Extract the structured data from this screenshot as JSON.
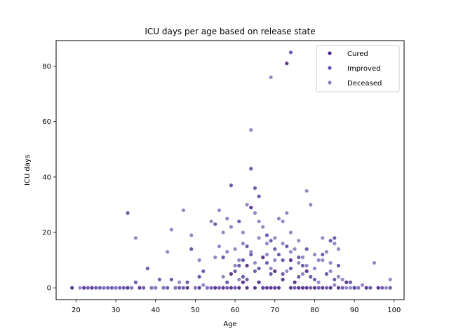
{
  "chart_data": {
    "type": "scatter",
    "title": "ICU days per age based on release state",
    "xlabel": "Age",
    "ylabel": "ICU days",
    "xlim": [
      15.0,
      102.5
    ],
    "ylim": [
      -4.25,
      89.25
    ],
    "xticks": [
      20,
      30,
      40,
      50,
      60,
      70,
      80,
      90,
      100
    ],
    "yticks": [
      0,
      20,
      40,
      60,
      80
    ],
    "grid": false,
    "legend_position": "top-right",
    "series": [
      {
        "name": "Cured",
        "color": "#4a2585",
        "points": [
          [
            19,
            0
          ],
          [
            22,
            0
          ],
          [
            24,
            0
          ],
          [
            27,
            0
          ],
          [
            30,
            0
          ],
          [
            33,
            0
          ],
          [
            36,
            0
          ],
          [
            39,
            0
          ],
          [
            42,
            0
          ],
          [
            45,
            0
          ],
          [
            48,
            0
          ],
          [
            51,
            0
          ],
          [
            53,
            0
          ],
          [
            55,
            0
          ],
          [
            57,
            0
          ],
          [
            59,
            0
          ],
          [
            61,
            0
          ],
          [
            62,
            2
          ],
          [
            63,
            0
          ],
          [
            64,
            29
          ],
          [
            65,
            0
          ],
          [
            66,
            2
          ],
          [
            67,
            0
          ],
          [
            68,
            0
          ],
          [
            69,
            0
          ],
          [
            70,
            0
          ],
          [
            71,
            0
          ],
          [
            72,
            3
          ],
          [
            73,
            81
          ],
          [
            74,
            0
          ],
          [
            75,
            2
          ],
          [
            76,
            0
          ],
          [
            77,
            0
          ],
          [
            78,
            0
          ],
          [
            80,
            0
          ],
          [
            82,
            0
          ],
          [
            84,
            0
          ],
          [
            86,
            0
          ],
          [
            88,
            2
          ],
          [
            90,
            0
          ],
          [
            93,
            0
          ],
          [
            96,
            0
          ],
          [
            59,
            5
          ],
          [
            63,
            8
          ],
          [
            67,
            11
          ],
          [
            70,
            6
          ],
          [
            74,
            10
          ],
          [
            78,
            6
          ]
        ]
      },
      {
        "name": "Improved",
        "color": "#5e4aa8",
        "points": [
          [
            23,
            0
          ],
          [
            25,
            0
          ],
          [
            26,
            0
          ],
          [
            28,
            0
          ],
          [
            29,
            0
          ],
          [
            31,
            0
          ],
          [
            32,
            0
          ],
          [
            33,
            27
          ],
          [
            34,
            0
          ],
          [
            35,
            2
          ],
          [
            37,
            0
          ],
          [
            38,
            7
          ],
          [
            40,
            0
          ],
          [
            41,
            3
          ],
          [
            43,
            0
          ],
          [
            44,
            3
          ],
          [
            46,
            0
          ],
          [
            47,
            0
          ],
          [
            48,
            2
          ],
          [
            49,
            14
          ],
          [
            50,
            0
          ],
          [
            51,
            4
          ],
          [
            52,
            6
          ],
          [
            54,
            0
          ],
          [
            55,
            23
          ],
          [
            56,
            0
          ],
          [
            57,
            11
          ],
          [
            58,
            0
          ],
          [
            59,
            37
          ],
          [
            60,
            0
          ],
          [
            61,
            24
          ],
          [
            62,
            10
          ],
          [
            63,
            15
          ],
          [
            64,
            43
          ],
          [
            65,
            36
          ],
          [
            66,
            33
          ],
          [
            67,
            0
          ],
          [
            68,
            19
          ],
          [
            69,
            5
          ],
          [
            70,
            0
          ],
          [
            71,
            12
          ],
          [
            72,
            10
          ],
          [
            73,
            15
          ],
          [
            74,
            85
          ],
          [
            75,
            0
          ],
          [
            76,
            4
          ],
          [
            77,
            8
          ],
          [
            78,
            14
          ],
          [
            79,
            0
          ],
          [
            80,
            3
          ],
          [
            81,
            0
          ],
          [
            82,
            12
          ],
          [
            83,
            0
          ],
          [
            84,
            17
          ],
          [
            85,
            3
          ],
          [
            86,
            8
          ],
          [
            87,
            0
          ],
          [
            89,
            2
          ],
          [
            90,
            0
          ],
          [
            91,
            0
          ],
          [
            94,
            0
          ],
          [
            97,
            0
          ],
          [
            99,
            0
          ],
          [
            58,
            2
          ],
          [
            60,
            6
          ],
          [
            62,
            4
          ],
          [
            64,
            12
          ],
          [
            66,
            7
          ],
          [
            68,
            9
          ],
          [
            70,
            14
          ],
          [
            72,
            5
          ],
          [
            74,
            7
          ],
          [
            76,
            11
          ],
          [
            79,
            4
          ],
          [
            83,
            5
          ],
          [
            85,
            18
          ],
          [
            61,
            8
          ],
          [
            63,
            3
          ],
          [
            65,
            6
          ],
          [
            69,
            17
          ]
        ]
      },
      {
        "name": "Deceased",
        "color": "#8a7bc2",
        "points": [
          [
            21,
            0
          ],
          [
            27,
            0
          ],
          [
            30,
            0
          ],
          [
            34,
            0
          ],
          [
            35,
            18
          ],
          [
            39,
            0
          ],
          [
            42,
            0
          ],
          [
            43,
            13
          ],
          [
            44,
            21
          ],
          [
            45,
            0
          ],
          [
            47,
            28
          ],
          [
            49,
            19
          ],
          [
            50,
            0
          ],
          [
            51,
            10
          ],
          [
            53,
            0
          ],
          [
            54,
            24
          ],
          [
            55,
            11
          ],
          [
            56,
            28
          ],
          [
            57,
            20
          ],
          [
            58,
            25
          ],
          [
            59,
            22
          ],
          [
            60,
            14
          ],
          [
            61,
            10
          ],
          [
            62,
            16
          ],
          [
            63,
            30
          ],
          [
            64,
            57
          ],
          [
            65,
            27
          ],
          [
            66,
            24
          ],
          [
            67,
            22
          ],
          [
            68,
            16
          ],
          [
            69,
            76
          ],
          [
            70,
            18
          ],
          [
            71,
            25
          ],
          [
            72,
            24
          ],
          [
            73,
            27
          ],
          [
            74,
            20
          ],
          [
            75,
            14
          ],
          [
            76,
            17
          ],
          [
            77,
            11
          ],
          [
            78,
            35
          ],
          [
            79,
            30
          ],
          [
            80,
            7
          ],
          [
            81,
            10
          ],
          [
            82,
            18
          ],
          [
            83,
            13
          ],
          [
            84,
            9
          ],
          [
            85,
            16
          ],
          [
            86,
            14
          ],
          [
            87,
            3
          ],
          [
            88,
            0
          ],
          [
            89,
            0
          ],
          [
            91,
            0
          ],
          [
            92,
            1
          ],
          [
            95,
            9
          ],
          [
            98,
            0
          ],
          [
            99,
            3
          ],
          [
            56,
            15
          ],
          [
            58,
            13
          ],
          [
            60,
            8
          ],
          [
            62,
            20
          ],
          [
            64,
            13
          ],
          [
            66,
            18
          ],
          [
            68,
            12
          ],
          [
            70,
            10
          ],
          [
            72,
            16
          ],
          [
            74,
            13
          ],
          [
            76,
            9
          ],
          [
            78,
            8
          ],
          [
            80,
            12
          ],
          [
            82,
            10
          ],
          [
            84,
            6
          ],
          [
            86,
            4
          ],
          [
            57,
            4
          ],
          [
            61,
            3
          ],
          [
            65,
            9
          ],
          [
            69,
            7
          ],
          [
            73,
            6
          ],
          [
            77,
            5
          ],
          [
            81,
            2
          ],
          [
            85,
            1
          ],
          [
            40,
            0
          ],
          [
            46,
            2
          ],
          [
            52,
            1
          ]
        ]
      }
    ]
  }
}
